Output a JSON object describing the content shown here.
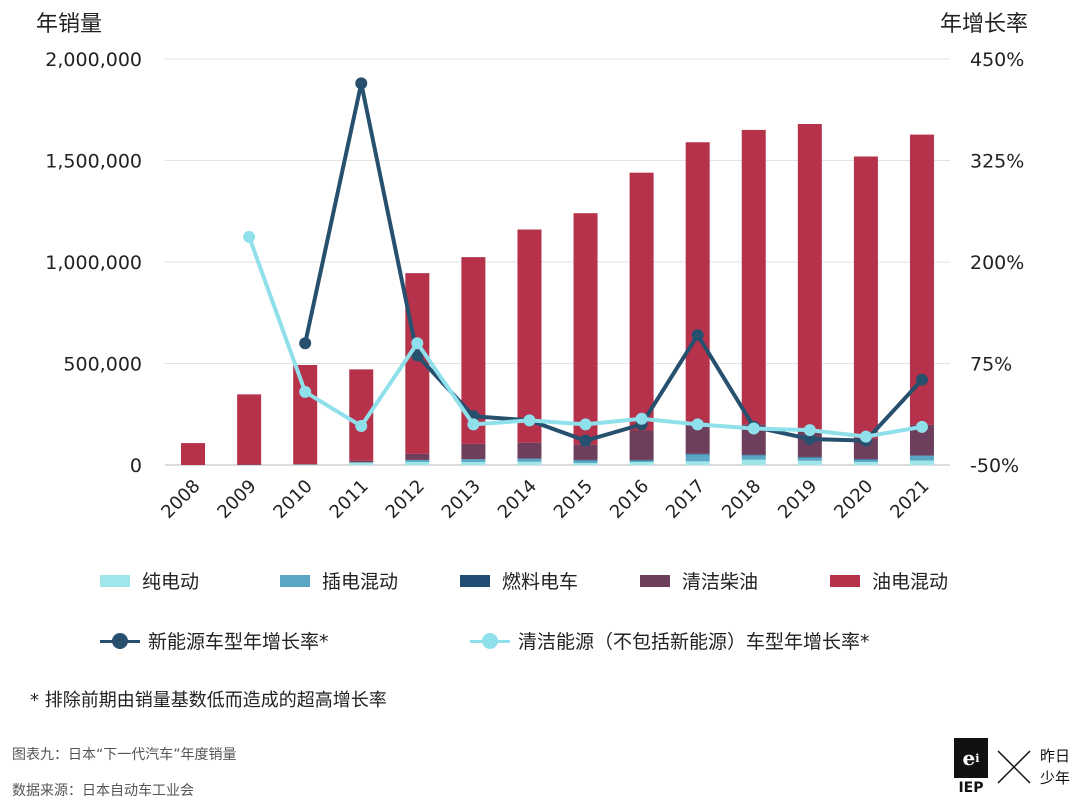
{
  "chart_data": {
    "type": "bar",
    "title": "",
    "ylabel_left": "年销量",
    "ylabel_right": "年增长率",
    "categories": [
      "2008",
      "2009",
      "2010",
      "2011",
      "2012",
      "2013",
      "2014",
      "2015",
      "2016",
      "2017",
      "2018",
      "2019",
      "2020",
      "2021"
    ],
    "y_left": {
      "range": [
        0,
        2000000
      ],
      "ticks": [
        "0",
        "500,000",
        "1,000,000",
        "1,500,000",
        "2,000,000"
      ]
    },
    "y_right": {
      "range": [
        -50,
        450
      ],
      "ticks": [
        "-50%",
        "75%",
        "200%",
        "325%",
        "450%"
      ]
    },
    "bar_series": [
      {
        "name": "纯电动",
        "color": "#9ee6ea",
        "values": [
          0,
          1000,
          2500,
          13000,
          15000,
          15000,
          16000,
          10000,
          15000,
          18000,
          26000,
          21000,
          15000,
          22000
        ]
      },
      {
        "name": "插电混动",
        "color": "#5aa7c4",
        "values": [
          0,
          0,
          0,
          0,
          10000,
          14000,
          16000,
          15000,
          9000,
          36000,
          24000,
          18000,
          14000,
          23000
        ]
      },
      {
        "name": "燃料电车",
        "color": "#1f4d73",
        "values": [
          0,
          0,
          0,
          0,
          0,
          0,
          0,
          400,
          1000,
          850,
          600,
          700,
          750,
          2500
        ]
      },
      {
        "name": "清洁柴油",
        "color": "#6e3f5c",
        "values": [
          0,
          1000,
          2000,
          8000,
          30000,
          75000,
          78000,
          75000,
          145000,
          155000,
          150000,
          130000,
          100000,
          150000
        ]
      },
      {
        "name": "油电混动",
        "color": "#b5324a",
        "values": [
          108000,
          346000,
          488000,
          450000,
          890000,
          920000,
          1050000,
          1140000,
          1270000,
          1380000,
          1450000,
          1510000,
          1390000,
          1430000
        ]
      }
    ],
    "line_series": [
      {
        "name": "新能源车型年增长率*",
        "color": "#27506f",
        "values": [
          null,
          null,
          100,
          420,
          85,
          10,
          5,
          -20,
          0,
          110,
          -3,
          -18,
          -20,
          55
        ]
      },
      {
        "name": "清洁能源（不包括新能源）车型年增长率*",
        "color": "#8fe0ea",
        "values": [
          null,
          231,
          40,
          -2,
          100,
          0,
          5,
          0,
          7,
          0,
          -5,
          -7,
          -15,
          -3
        ]
      }
    ],
    "legend_position": "bottom",
    "grid": true
  },
  "note": "* 排除前期由销量基数低而造成的超高增长率",
  "caption_title": "图表九：日本“下一代汽车”年度销量",
  "caption_source": "数据来源：日本自动车工业会",
  "logo": {
    "mark": "e",
    "sup": "i",
    "abbr": "IEP",
    "text_line1": "昨日",
    "text_line2": "少年"
  }
}
